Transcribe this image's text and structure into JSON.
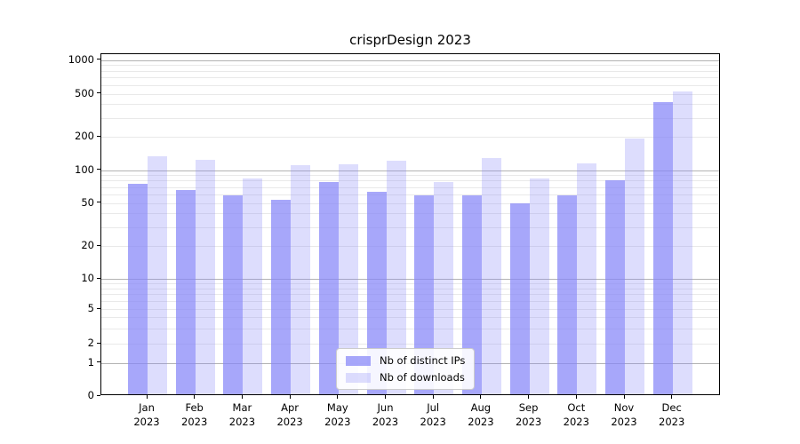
{
  "title": "crisprDesign 2023",
  "chart_data": {
    "type": "bar",
    "title": "crisprDesign 2023",
    "categories": [
      "Jan 2023",
      "Feb 2023",
      "Mar 2023",
      "Apr 2023",
      "May 2023",
      "Jun 2023",
      "Jul 2023",
      "Aug 2023",
      "Sep 2023",
      "Oct 2023",
      "Nov 2023",
      "Dec 2023"
    ],
    "series": [
      {
        "name": "Nb of distinct IPs",
        "color": "#8585f8",
        "opacity": 0.72,
        "values": [
          75,
          65,
          59,
          53,
          77,
          63,
          59,
          59,
          50,
          59,
          81,
          417
        ]
      },
      {
        "name": "Nb of downloads",
        "color": "#8585f8",
        "opacity": 0.28,
        "values": [
          133,
          124,
          84,
          111,
          113,
          121,
          78,
          128,
          83,
          115,
          194,
          528
        ]
      }
    ],
    "xlabel": "",
    "ylabel": "",
    "yscale": "log-like with 0 baseline",
    "yticks": [
      0,
      1,
      2,
      5,
      10,
      20,
      50,
      100,
      200,
      500,
      1000
    ],
    "ylim": [
      0,
      1140
    ],
    "grid": "horizontal major and minor lines",
    "legend_position": "lower center inside plot"
  },
  "colors": {
    "bar_base": "#8585f8",
    "grid_major": "#b3b3b3",
    "grid_minor": "#e9e9e9",
    "axis": "#000000",
    "legend_border": "#cccccc",
    "background": "#ffffff"
  }
}
